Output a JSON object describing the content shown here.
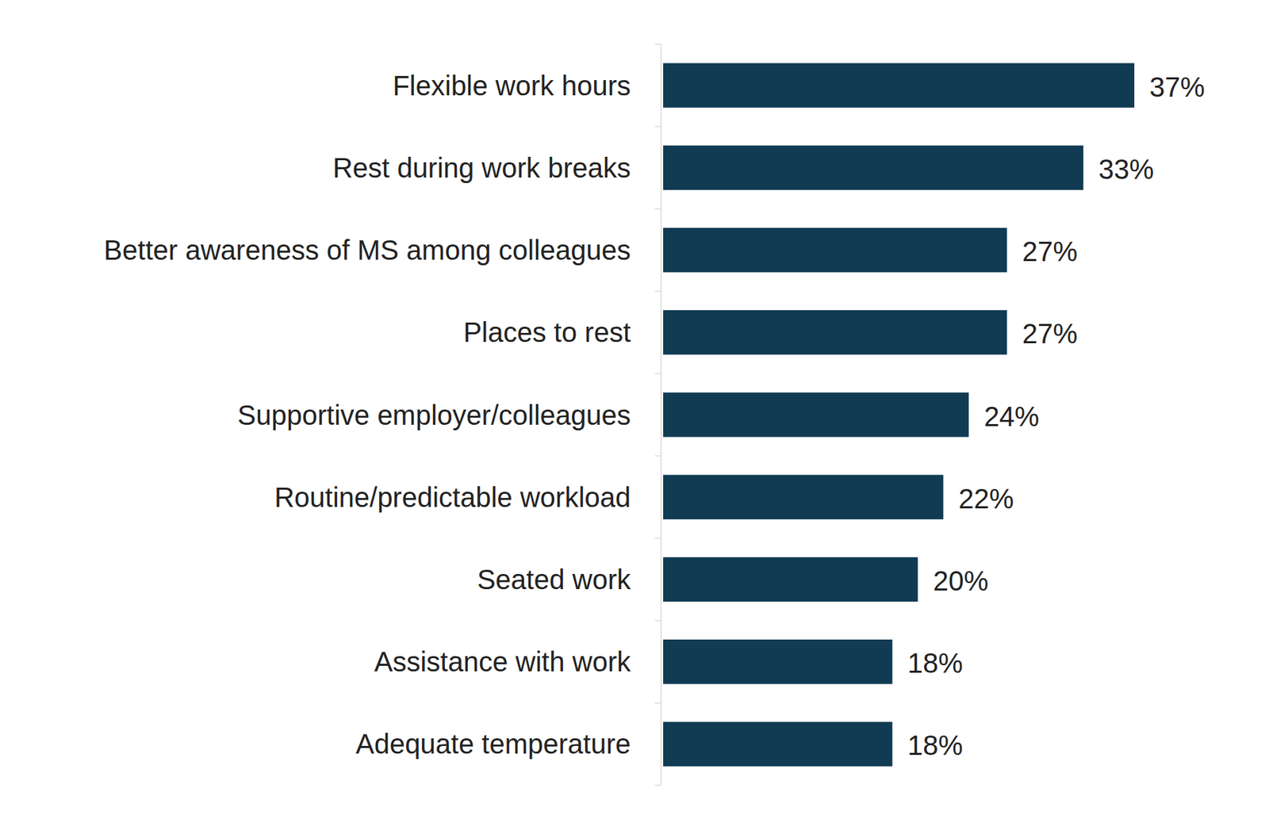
{
  "chart_data": {
    "type": "bar",
    "orientation": "horizontal",
    "categories": [
      "Flexible work hours",
      "Rest during work breaks",
      "Better awareness of MS among colleagues",
      "Places to rest",
      "Supportive employer/colleagues",
      "Routine/predictable workload",
      "Seated work",
      "Assistance with work",
      "Adequate temperature"
    ],
    "values": [
      37,
      33,
      27,
      27,
      24,
      22,
      20,
      18,
      18
    ],
    "value_labels": [
      "37%",
      "33%",
      "27%",
      "27%",
      "24%",
      "22%",
      "20%",
      "18%",
      "18%"
    ],
    "color": "#113b53",
    "xlim": [
      0,
      37
    ],
    "data_labels": true,
    "tick_labels": "y",
    "grid": false
  }
}
